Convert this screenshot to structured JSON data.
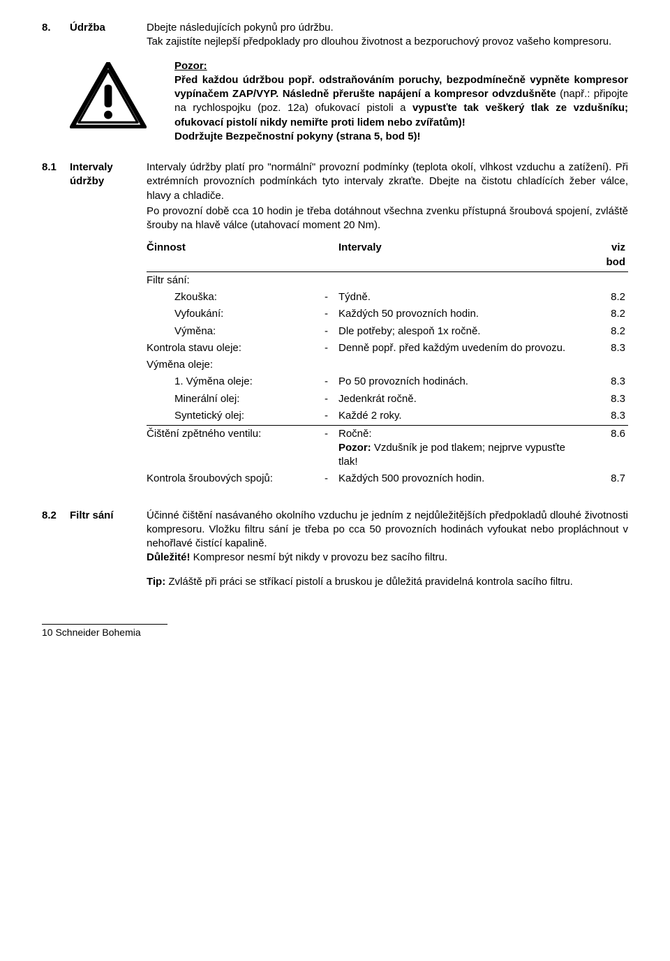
{
  "section8": {
    "num": "8.",
    "label": "Údržba",
    "intro": "Dbejte následujících pokynů pro údržbu.",
    "intro2": "Tak zajistíte nejlepší předpoklady pro dlouhou životnost a bezporuchový provoz vašeho kompresoru.",
    "warning": {
      "title": "Pozor:",
      "p1a": "Před každou údržbou popř. odstraňováním poruchy, ",
      "p1b": "bezpodmínečně vypněte kompresor vypínačem ZAP/VYP. Následně přerušte napájení a kompresor odvzdušněte",
      "p1c": " (např.: připojte na rychlospojku (poz. 12a) ofukovací pistoli a ",
      "p1d": "vypusťte tak veškerý tlak ze vzdušníku; ofukovací pistolí nikdy nemiřte proti lidem nebo zvířatům)!",
      "p2": "Dodržujte Bezpečnostní pokyny (strana 5, bod 5)!"
    }
  },
  "section81": {
    "num": "8.1",
    "label1": "Intervaly",
    "label2": "údržby",
    "p1": "Intervaly údržby platí pro \"normální\" provozní podmínky (teplota okolí, vlhkost vzduchu a zatížení). Při extrémních provozních podmínkách tyto intervaly zkraťte. Dbejte na čistotu chladících žeber válce, hlavy a chladiče.",
    "p2": "Po provozní době cca 10 hodin je třeba dotáhnout všechna zvenku přístupná šroubová spojení, zvláště šrouby na hlavě válce (utahovací moment 20 Nm).",
    "table": {
      "h_activity": "Činnost",
      "h_interval": "Intervaly",
      "h_ref1": "viz",
      "h_ref2": "bod",
      "groups": [
        {
          "type": "header",
          "label": "Filtr sání:"
        },
        {
          "type": "row",
          "activity": "Zkouška:",
          "interval": "Týdně.",
          "ref": "8.2",
          "indent": true
        },
        {
          "type": "row",
          "activity": "Vyfoukání:",
          "interval": "Každých 50 provozních hodin.",
          "ref": "8.2",
          "indent": true
        },
        {
          "type": "row",
          "activity": "Výměna:",
          "interval": "Dle potřeby; alespoň 1x ročně.",
          "ref": "8.2",
          "indent": true
        },
        {
          "type": "row",
          "activity": "Kontrola stavu oleje:",
          "interval": "Denně popř. před každým uvedením do provozu.",
          "ref": "8.3"
        },
        {
          "type": "header",
          "label": "Výměna oleje:"
        },
        {
          "type": "row",
          "activity": "1. Výměna oleje:",
          "interval": "Po 50 provozních hodinách.",
          "ref": "8.3",
          "indent": true
        },
        {
          "type": "row",
          "activity": "Minerální olej:",
          "interval": "Jedenkrát ročně.",
          "ref": "8.3",
          "indent": true
        },
        {
          "type": "row",
          "activity": "Syntetický olej:",
          "interval": "Každé 2 roky.",
          "ref": "8.3",
          "indent": true
        }
      ],
      "after_sep": [
        {
          "activity": "Čištění zpětného ventilu:",
          "interval_pre": "Ročně:",
          "interval_bold": "Pozor:",
          "interval_post": " Vzdušník je pod tlakem; nejprve vypusťte tlak!",
          "ref": "8.6"
        },
        {
          "activity": "Kontrola šroubových spojů:",
          "interval": "Každých 500 provozních hodin.",
          "ref": "8.7"
        }
      ]
    }
  },
  "section82": {
    "num": "8.2",
    "label": "Filtr sání",
    "p1": "Účinné čištění nasávaného okolního vzduchu je jedním z nejdůležitějších předpokladů dlouhé životnosti kompresoru. Vložku filtru sání je třeba po cca 50 provozních hodinách vyfoukat nebo propláchnout v nehořlavé čistící kapalině.",
    "p2a": "Důležité!",
    "p2b": " Kompresor nesmí být nikdy v provozu bez sacího filtru.",
    "p3a": "Tip:",
    "p3b": " Zvláště při práci se stříkací pistolí a bruskou je důležitá pravidelná kontrola sacího filtru."
  },
  "footer": "10 Schneider Bohemia"
}
